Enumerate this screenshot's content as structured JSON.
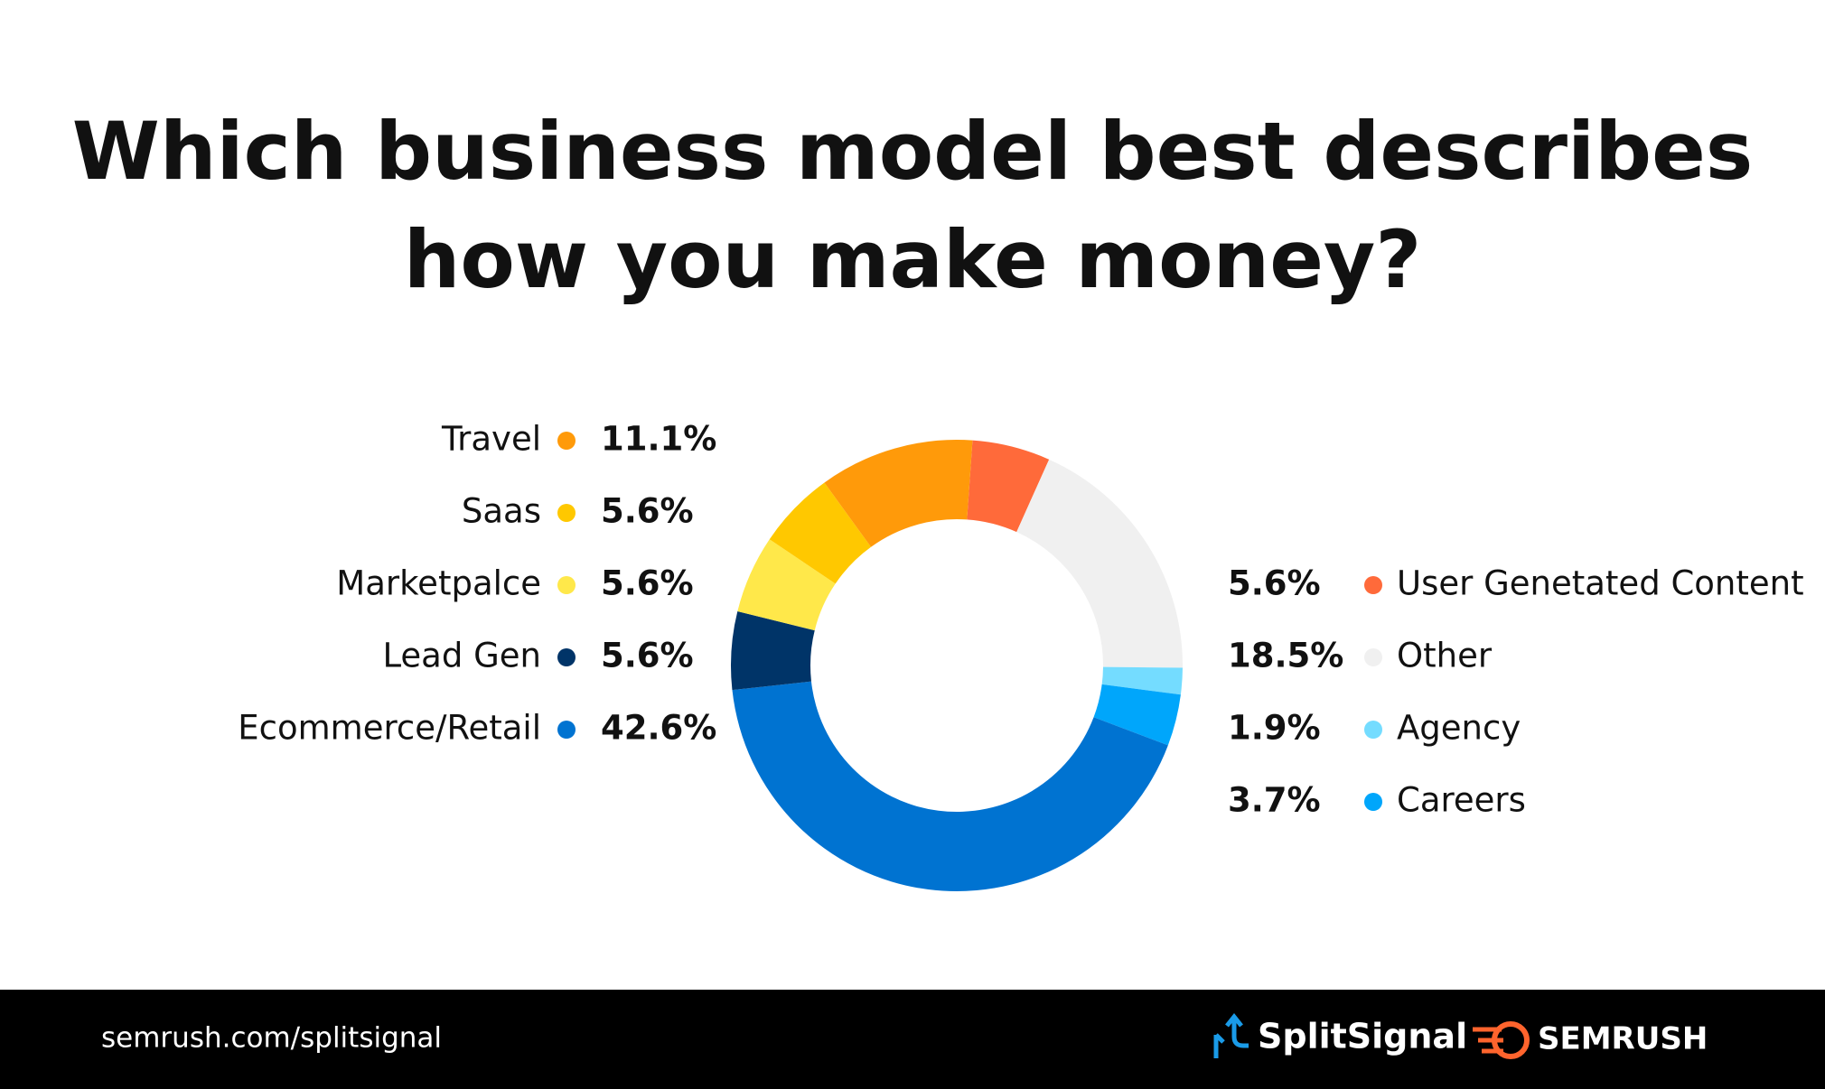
{
  "chart_data": {
    "type": "donut",
    "title": [
      "Which business model best describes",
      "how you make money?"
    ],
    "categories": [
      "User Genetated Content",
      "Other",
      "Agency",
      "Careers",
      "Ecommerce/Retail",
      "Lead Gen",
      "Marketpalce",
      "Saas",
      "Travel"
    ],
    "values": [
      5.6,
      18.5,
      1.9,
      3.7,
      42.6,
      5.6,
      5.6,
      5.6,
      11.1
    ],
    "value_labels": [
      "5.6%",
      "18.5%",
      "1.9%",
      "3.7%",
      "42.6%",
      "5.6%",
      "5.6%",
      "5.6%",
      "11.1%"
    ],
    "colors": [
      "#ff6a3a",
      "#f0f0f0",
      "#74dcff",
      "#00a6fb",
      "#0073d1",
      "#003468",
      "#ffe84a",
      "#ffc800",
      "#ff9a0a"
    ]
  },
  "footer": {
    "url": "semrush.com/splitsignal",
    "brands": [
      "SplitSignal",
      "SEMRUSH"
    ]
  }
}
